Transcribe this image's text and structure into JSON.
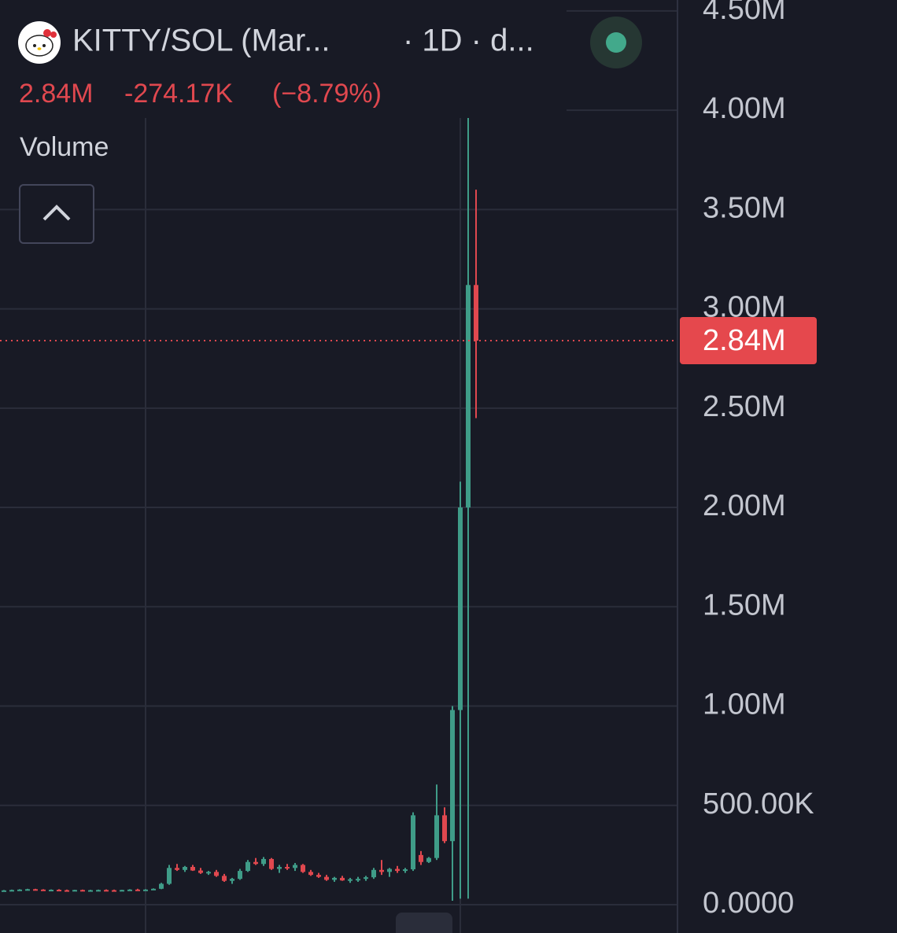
{
  "header": {
    "title": "KITTY/SOL (Mar...",
    "interval": "· 1D · d...",
    "last_price": "2.84M",
    "change": "-274.17K",
    "change_pct": "(−8.79%)",
    "indicator": "Volume"
  },
  "chart_data": {
    "type": "candlestick",
    "categories": [
      null,
      null,
      null,
      null,
      null,
      null,
      null,
      null,
      null,
      null,
      null,
      null,
      null,
      null,
      null,
      null,
      null,
      null,
      null,
      null,
      null,
      null,
      null,
      null,
      null,
      null,
      null,
      null,
      null,
      null,
      null,
      null,
      null,
      null,
      null,
      null,
      null,
      null,
      null,
      null,
      null,
      null,
      null,
      null,
      null,
      null,
      null,
      null,
      null,
      null,
      null,
      null,
      null,
      null,
      null,
      null,
      null,
      null,
      null,
      null,
      null
    ],
    "open": [
      70000,
      72000,
      74000,
      76000,
      78000,
      76000,
      74000,
      75000,
      73000,
      72000,
      74000,
      72000,
      73000,
      74000,
      73000,
      72000,
      74000,
      76000,
      75000,
      76000,
      80000,
      105000,
      185000,
      175000,
      190000,
      172000,
      160000,
      165000,
      145000,
      120000,
      130000,
      170000,
      215000,
      205000,
      230000,
      180000,
      190000,
      185000,
      200000,
      165000,
      150000,
      140000,
      125000,
      135000,
      122000,
      128000,
      130000,
      138000,
      175000,
      165000,
      180000,
      170000,
      178000,
      250000,
      215000,
      235000,
      450000,
      320000,
      980000,
      2000000,
      3120000
    ],
    "high": [
      74000,
      76000,
      78000,
      80000,
      80000,
      78000,
      77000,
      78000,
      76000,
      75000,
      76000,
      75000,
      76000,
      77000,
      76000,
      75000,
      78000,
      80000,
      78000,
      82000,
      110000,
      200000,
      205000,
      195000,
      200000,
      185000,
      170000,
      175000,
      155000,
      135000,
      180000,
      225000,
      235000,
      240000,
      235000,
      200000,
      205000,
      210000,
      205000,
      175000,
      160000,
      150000,
      140000,
      145000,
      135000,
      140000,
      145000,
      185000,
      225000,
      185000,
      195000,
      185000,
      465000,
      270000,
      240000,
      605000,
      490000,
      1000000,
      2130000,
      3980000,
      3600000
    ],
    "low": [
      68000,
      70000,
      72000,
      74000,
      74000,
      72000,
      71000,
      72000,
      70000,
      69000,
      71000,
      70000,
      71000,
      72000,
      70000,
      70000,
      72000,
      74000,
      72000,
      74000,
      78000,
      100000,
      170000,
      165000,
      170000,
      155000,
      150000,
      140000,
      115000,
      105000,
      125000,
      165000,
      200000,
      195000,
      175000,
      160000,
      175000,
      170000,
      160000,
      145000,
      135000,
      120000,
      115000,
      120000,
      110000,
      115000,
      120000,
      130000,
      150000,
      140000,
      160000,
      160000,
      170000,
      200000,
      210000,
      225000,
      310000,
      20000,
      30000,
      30000,
      2450000
    ],
    "close": [
      72000,
      74000,
      76000,
      78000,
      76000,
      74000,
      75000,
      73000,
      72000,
      74000,
      72000,
      73000,
      74000,
      73000,
      72000,
      74000,
      76000,
      75000,
      76000,
      80000,
      105000,
      185000,
      175000,
      190000,
      172000,
      160000,
      165000,
      145000,
      120000,
      130000,
      170000,
      215000,
      205000,
      230000,
      180000,
      190000,
      185000,
      200000,
      165000,
      150000,
      140000,
      125000,
      135000,
      122000,
      128000,
      130000,
      138000,
      175000,
      165000,
      180000,
      170000,
      178000,
      450000,
      215000,
      235000,
      450000,
      320000,
      980000,
      2000000,
      3120000,
      2840000
    ],
    "up_color": "#3f9c88",
    "down_color": "#e0484f",
    "ylim": [
      -142600,
      4555000
    ],
    "yticks": [
      {
        "value": 0,
        "label": "0.0000"
      },
      {
        "value": 500000,
        "label": "500.00K"
      },
      {
        "value": 1000000,
        "label": "1.00M"
      },
      {
        "value": 1500000,
        "label": "1.50M"
      },
      {
        "value": 2000000,
        "label": "2.00M"
      },
      {
        "value": 2500000,
        "label": "2.50M"
      },
      {
        "value": 3000000,
        "label": "3.00M"
      },
      {
        "value": 3500000,
        "label": "3.50M"
      },
      {
        "value": 4000000,
        "label": "4.00M"
      },
      {
        "value": 4500000,
        "label": "4.50M"
      }
    ],
    "grid": true,
    "last_price": {
      "value": 2840000,
      "label": "2.84M"
    }
  }
}
